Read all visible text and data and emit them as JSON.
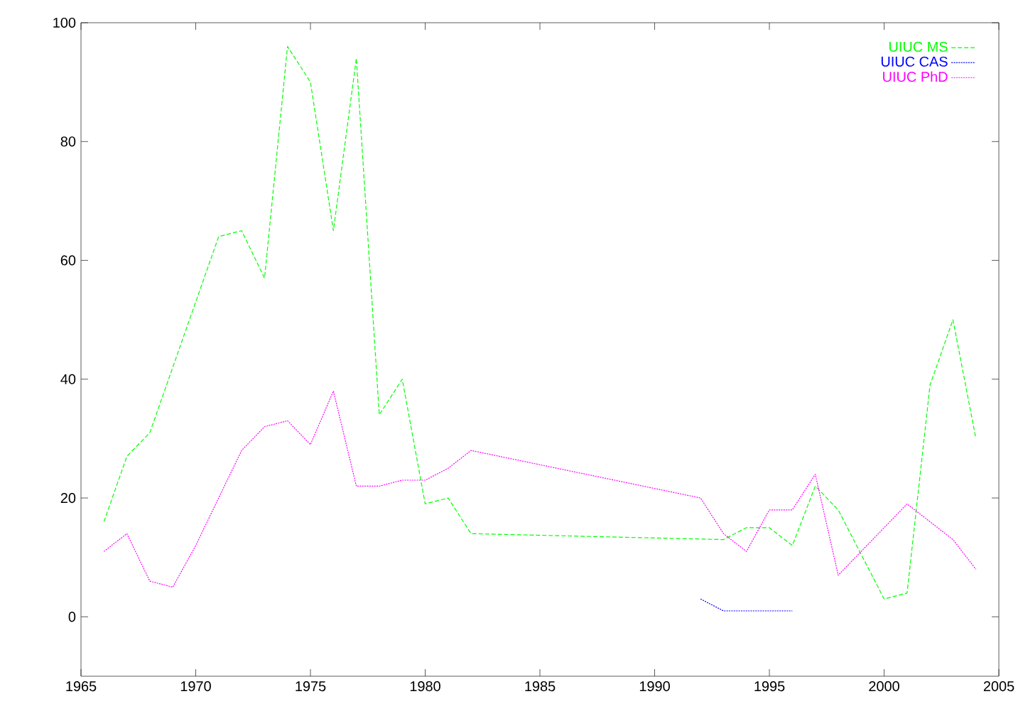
{
  "chart_data": {
    "type": "line",
    "series": [
      {
        "name": "UIUC MS",
        "color": "#00ff00",
        "line_style": "dashed",
        "x": [
          1966,
          1967,
          1968,
          1969,
          1970,
          1971,
          1972,
          1973,
          1974,
          1975,
          1976,
          1977,
          1978,
          1979,
          1980,
          1981,
          1982,
          1993,
          1994,
          1995,
          1996,
          1997,
          1998,
          2000,
          2001,
          2002,
          2003,
          2004
        ],
        "values": [
          16,
          27,
          31,
          42,
          53,
          64,
          65,
          57,
          96,
          90,
          65,
          94,
          34,
          40,
          19,
          20,
          14,
          13,
          15,
          15,
          12,
          22,
          18,
          3,
          4,
          39,
          50,
          30
        ]
      },
      {
        "name": "UIUC CAS",
        "color": "#0000ff",
        "line_style": "dotted",
        "x": [
          1992,
          1993,
          1994,
          1995,
          1996
        ],
        "values": [
          3,
          1,
          1,
          1,
          1
        ]
      },
      {
        "name": "UIUC PhD",
        "color": "#ff00ff",
        "line_style": "dotted",
        "x": [
          1966,
          1967,
          1968,
          1969,
          1970,
          1971,
          1972,
          1973,
          1974,
          1975,
          1976,
          1977,
          1978,
          1979,
          1980,
          1981,
          1982,
          1992,
          1993,
          1994,
          1995,
          1996,
          1997,
          1998,
          2001,
          2003,
          2004
        ],
        "values": [
          11,
          14,
          6,
          5,
          12,
          20,
          28,
          32,
          33,
          29,
          38,
          22,
          22,
          23,
          23,
          25,
          28,
          20,
          14,
          11,
          18,
          18,
          24,
          7,
          19,
          13,
          8
        ]
      }
    ],
    "xlim": [
      1965,
      2005
    ],
    "xticks": [
      1965,
      1970,
      1975,
      1980,
      1985,
      1990,
      1995,
      2000,
      2005
    ],
    "ylim": [
      -10,
      100
    ],
    "yticks": [
      0,
      20,
      40,
      60,
      80,
      100
    ],
    "legend": "top right",
    "grid": false,
    "marker": "none"
  }
}
